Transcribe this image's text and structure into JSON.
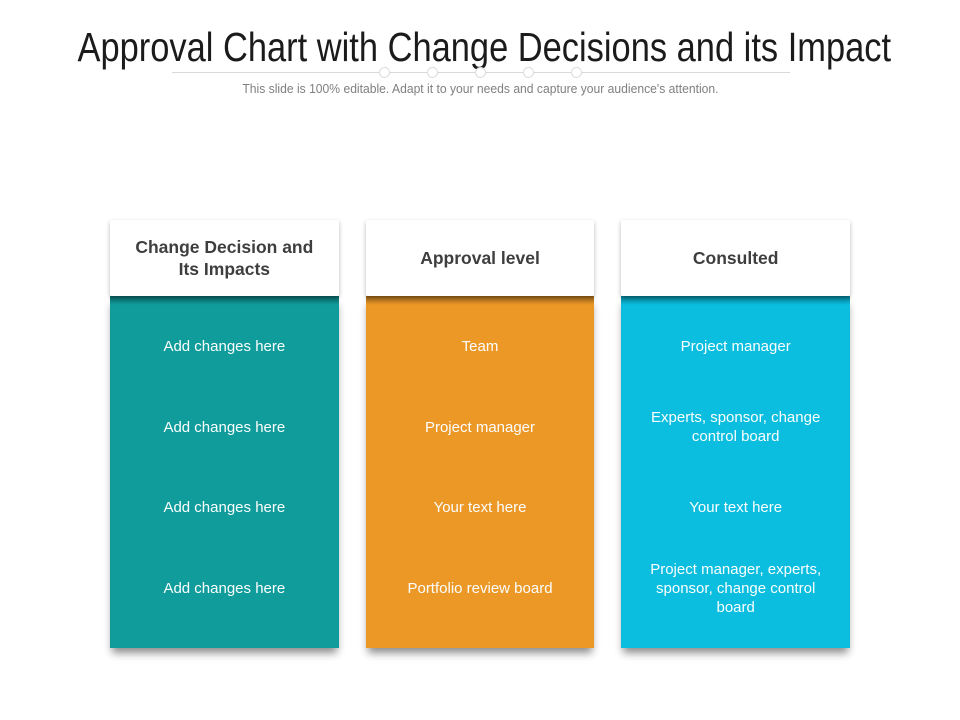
{
  "slide": {
    "title": "Approval Chart with Change Decisions and its Impact",
    "subtitle": "This slide is 100% editable. Adapt it to your needs and capture your audience's attention."
  },
  "colors": {
    "column1_body": "#119C9C",
    "column2_body": "#EC9827",
    "column3_body": "#0BBEDF",
    "header_card_bg": "#FFFFFF",
    "header_text": "#3E3E3E",
    "body_text": "#FAFDFD",
    "title_text": "#1B1B1B",
    "subtitle_text": "#7F7F7F",
    "divider_line": "#D9D9D9"
  },
  "chart_data": {
    "type": "table",
    "title": "Approval Chart with Change Decisions and its Impact",
    "columns": [
      "Change Decision and Its Impacts",
      "Approval level",
      "Consulted"
    ],
    "rows": [
      [
        "Add changes here",
        "Team",
        "Project manager"
      ],
      [
        "Add changes here",
        "Project manager",
        "Experts, sponsor, change control board"
      ],
      [
        "Add changes here",
        "Your text here",
        "Your text here"
      ],
      [
        "Add changes here",
        "Portfolio review board",
        "Project manager, experts, sponsor, change control board"
      ]
    ]
  },
  "columns": [
    {
      "header": "Change Decision and Its Impacts",
      "rows": [
        "Add changes here",
        "Add changes here",
        "Add changes here",
        "Add changes here"
      ]
    },
    {
      "header": "Approval level",
      "rows": [
        "Team",
        "Project manager",
        "Your text here",
        "Portfolio review board"
      ]
    },
    {
      "header": "Consulted",
      "rows": [
        "Project manager",
        "Experts, sponsor, change control board",
        "Your text here",
        "Project manager, experts, sponsor, change control board"
      ]
    }
  ]
}
